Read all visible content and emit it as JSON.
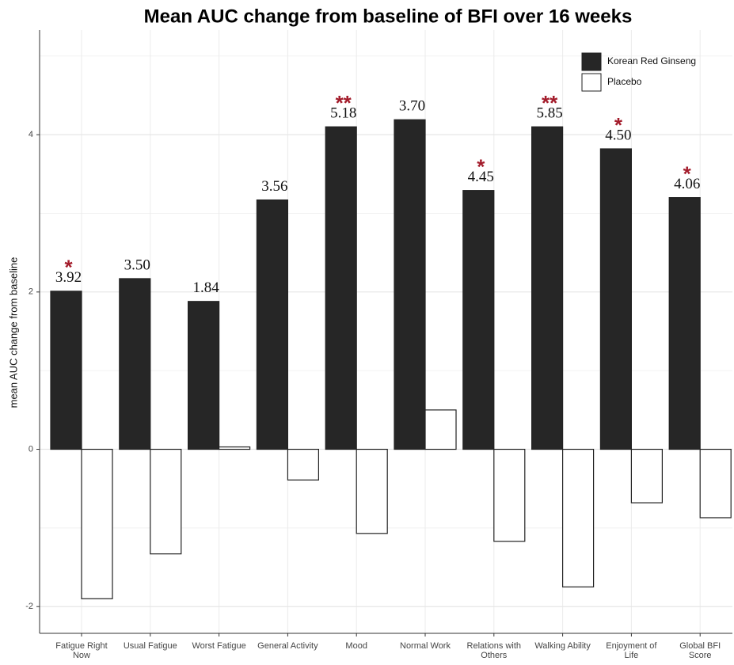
{
  "chart_data": {
    "type": "bar",
    "title": "Mean AUC change from baseline of BFI over 16 weeks",
    "y_label": "mean AUC change from baseline",
    "categories": [
      "Fatigue Right Now",
      "Usual Fatigue",
      "Worst Fatigue",
      "General Activity",
      "Mood",
      "Normal Work",
      "Relations with Others",
      "Walking Ability",
      "Enjoyment of Life",
      "Global BFI Score"
    ],
    "series": [
      {
        "name": "Korean Red Ginseng",
        "color": "#262626",
        "values": [
          2.01,
          2.17,
          1.88,
          3.17,
          4.1,
          4.19,
          3.29,
          4.1,
          3.82,
          3.2
        ]
      },
      {
        "name": "Placebo",
        "color": "#ffffff",
        "values": [
          -1.9,
          -1.33,
          0.03,
          -0.39,
          -1.07,
          0.5,
          -1.17,
          -1.75,
          -0.68,
          -0.87
        ]
      }
    ],
    "annotations": [
      {
        "label": "3.92",
        "significance": "*"
      },
      {
        "label": "3.50",
        "significance": null
      },
      {
        "label": "1.84",
        "significance": null
      },
      {
        "label": "3.56",
        "significance": null
      },
      {
        "label": "5.18",
        "significance": "**"
      },
      {
        "label": "3.70",
        "significance": null
      },
      {
        "label": "4.45",
        "significance": "*"
      },
      {
        "label": "5.85",
        "significance": "**"
      },
      {
        "label": "4.50",
        "significance": "*"
      },
      {
        "label": "4.06",
        "significance": "*"
      }
    ],
    "ylim": [
      -2.34,
      5.33
    ],
    "yticks": [
      -2,
      0,
      2,
      4
    ],
    "grid": true,
    "legend": "top-right"
  }
}
